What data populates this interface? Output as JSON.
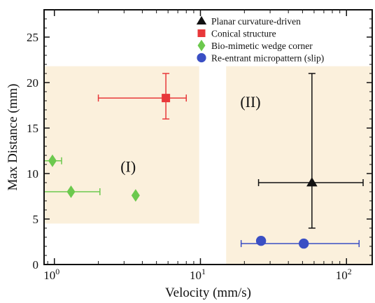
{
  "chart_data": {
    "type": "scatter",
    "xlabel": "Velocity (mm/s)",
    "ylabel": "Max Distance (mm)",
    "xscale": "log",
    "xlim": [
      0.85,
      150
    ],
    "ylim": [
      0,
      28
    ],
    "x_ticks": [
      {
        "value": 1,
        "base": "10",
        "exp": "0"
      },
      {
        "value": 10,
        "base": "10",
        "exp": "1"
      },
      {
        "value": 100,
        "base": "10",
        "exp": "2"
      }
    ],
    "y_ticks": [
      0,
      5,
      10,
      15,
      20,
      25
    ],
    "legend_position": "top-right",
    "regions": [
      {
        "label": "(I)",
        "x_range": [
          0.85,
          9.8
        ],
        "y_range": [
          4.5,
          21.8
        ],
        "color": "#fbf0dc"
      },
      {
        "label": "(II)",
        "x_range": [
          15,
          150
        ],
        "y_range": [
          0,
          21.8
        ],
        "color": "#fbf0dc"
      }
    ],
    "series": [
      {
        "name": "Planar curvature-driven",
        "marker": "triangle",
        "color": "#111111",
        "points": [
          {
            "x": 58,
            "y": 9.0,
            "xerr": [
              25,
              130
            ],
            "yerr": [
              4.0,
              21.0
            ]
          }
        ]
      },
      {
        "name": "Conical structure",
        "marker": "square",
        "color": "#e8383a",
        "points": [
          {
            "x": 5.8,
            "y": 18.3,
            "xerr": [
              2.0,
              8.0
            ],
            "yerr": [
              16.0,
              21.0
            ]
          }
        ]
      },
      {
        "name": "Bio-mimetic wedge corner",
        "marker": "diamond",
        "color": "#6cc94e",
        "points": [
          {
            "x": 0.97,
            "y": 11.4,
            "xerr": [
              0.85,
              1.12
            ]
          },
          {
            "x": 1.3,
            "y": 8.0,
            "xerr": [
              0.85,
              2.05
            ]
          },
          {
            "x": 3.6,
            "y": 7.6
          }
        ]
      },
      {
        "name": "Re-entrant micropattern (slip)",
        "marker": "circle",
        "color": "#3a4fc4",
        "points": [
          {
            "x": 26,
            "y": 2.6
          },
          {
            "x": 51,
            "y": 2.3,
            "xerr": [
              19,
              122
            ]
          }
        ]
      }
    ]
  }
}
